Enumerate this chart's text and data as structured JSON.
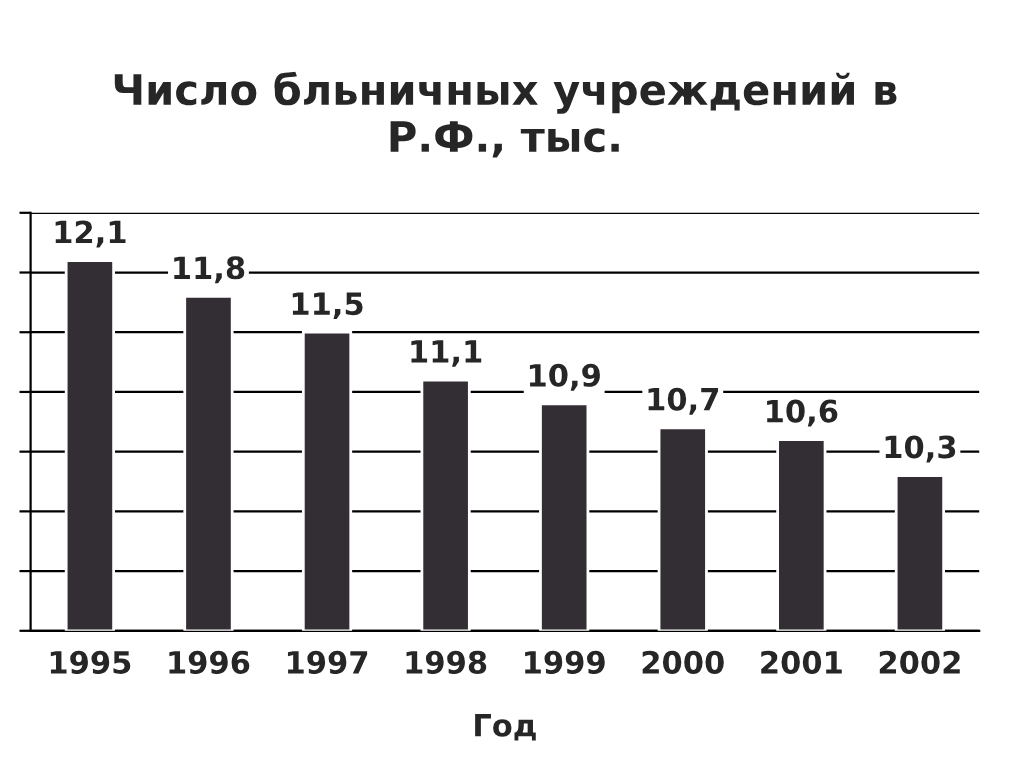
{
  "chart_data": {
    "type": "bar",
    "title": "Число бльничных учреждений в\nР.Ф., тыс.",
    "xlabel": "Год",
    "categories": [
      "1995",
      "1996",
      "1997",
      "1998",
      "1999",
      "2000",
      "2001",
      "2002"
    ],
    "values": [
      12.1,
      11.8,
      11.5,
      11.1,
      10.9,
      10.7,
      10.6,
      10.3
    ],
    "value_labels": [
      "12,1",
      "11,8",
      "11,5",
      "11,1",
      "10,9",
      "10,7",
      "10,6",
      "10,3"
    ],
    "color": "#332e33",
    "ylim": [
      9,
      12.5
    ],
    "yticks": [
      {
        "value": 9,
        "label": null
      },
      {
        "value": 9.5,
        "label": null
      },
      {
        "value": 10,
        "label": null
      },
      {
        "value": 10.5,
        "label": null
      },
      {
        "value": 11,
        "label": null
      },
      {
        "value": 11.5,
        "label": null
      },
      {
        "value": 12,
        "label": null
      },
      {
        "value": 12.5,
        "label": null
      }
    ],
    "grid": "y",
    "tick_labels": "x",
    "legend": false
  }
}
